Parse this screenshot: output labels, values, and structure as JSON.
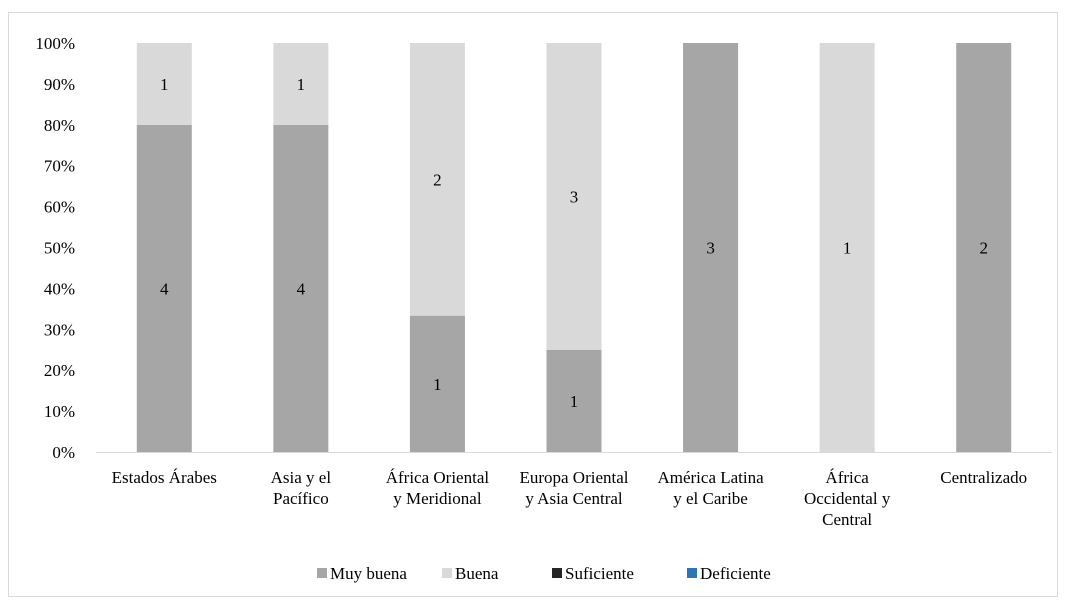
{
  "chart_data": {
    "type": "bar",
    "stacked": "percent",
    "categories": [
      [
        "Estados Árabes"
      ],
      [
        "Asia y el",
        "Pacífico"
      ],
      [
        "África Oriental",
        "y Meridional"
      ],
      [
        "Europa Oriental",
        "y Asia Central"
      ],
      [
        "América Latina",
        "y el Caribe"
      ],
      [
        "África",
        "Occidental y",
        "Central"
      ],
      [
        "Centralizado"
      ]
    ],
    "series": [
      {
        "name": "Muy buena",
        "color": "#a6a6a6",
        "values": [
          4,
          4,
          1,
          1,
          3,
          0,
          2
        ]
      },
      {
        "name": "Buena",
        "color": "#d9d9d9",
        "values": [
          1,
          1,
          2,
          3,
          0,
          1,
          0
        ]
      },
      {
        "name": "Suficiente",
        "color": "#262626",
        "values": [
          0,
          0,
          0,
          0,
          0,
          0,
          0
        ]
      },
      {
        "name": "Deficiente",
        "color": "#2e75b6",
        "values": [
          0,
          0,
          0,
          0,
          0,
          0,
          0
        ]
      }
    ],
    "y_ticks": [
      "0%",
      "10%",
      "20%",
      "30%",
      "40%",
      "50%",
      "60%",
      "70%",
      "80%",
      "90%",
      "100%"
    ],
    "ylim": [
      0,
      100
    ],
    "grid": false,
    "legend_position": "bottom",
    "data_labels": true
  }
}
